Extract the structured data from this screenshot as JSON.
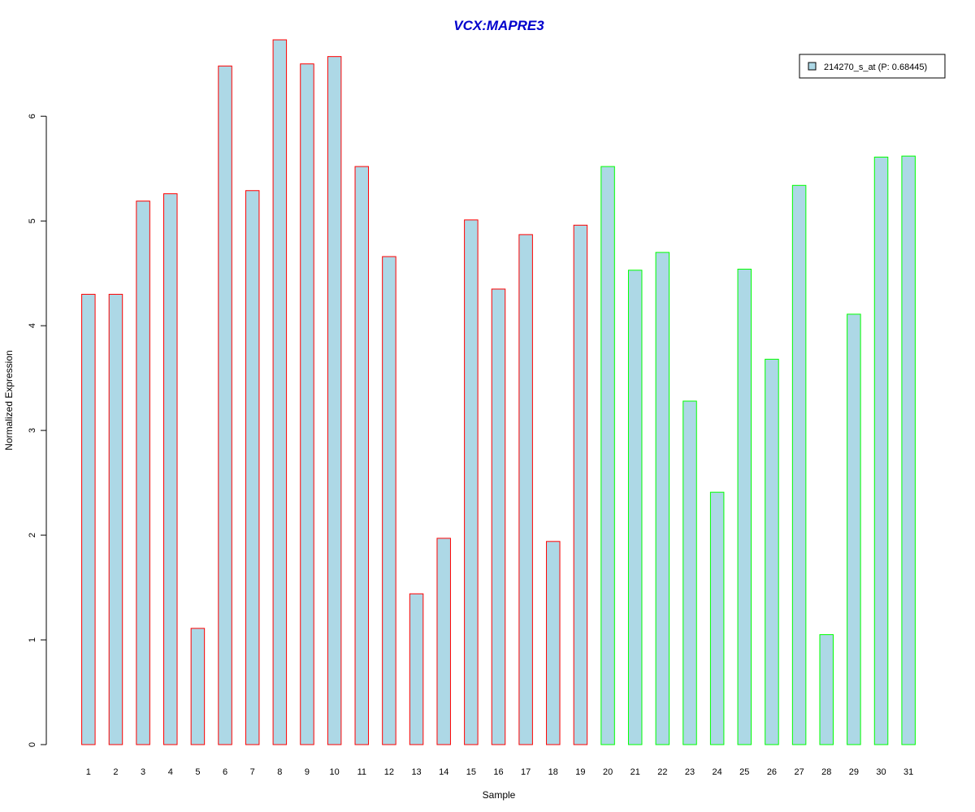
{
  "chart_data": {
    "type": "bar",
    "title": "VCX:MAPRE3",
    "xlabel": "Sample",
    "ylabel": "Normalized Expression",
    "ylim": [
      0,
      6.8
    ],
    "yticks": [
      0,
      1,
      2,
      3,
      4,
      5,
      6
    ],
    "categories": [
      "1",
      "2",
      "3",
      "4",
      "5",
      "6",
      "7",
      "8",
      "9",
      "10",
      "11",
      "12",
      "13",
      "14",
      "15",
      "16",
      "17",
      "18",
      "19",
      "20",
      "21",
      "22",
      "23",
      "24",
      "25",
      "26",
      "27",
      "28",
      "29",
      "30",
      "31"
    ],
    "series": [
      {
        "name": "214270_s_at (P: 0.68445)",
        "fill": "#add8e6",
        "values": [
          4.3,
          4.3,
          5.19,
          5.26,
          1.11,
          6.48,
          5.29,
          6.73,
          6.5,
          6.57,
          5.52,
          4.66,
          1.44,
          1.97,
          5.01,
          4.35,
          4.87,
          1.94,
          4.96,
          5.52,
          4.53,
          4.7,
          3.28,
          2.41,
          4.54,
          3.68,
          5.34,
          1.05,
          4.11,
          5.61,
          5.62
        ]
      }
    ],
    "bar_border_colors": [
      "#ff0000",
      "#ff0000",
      "#ff0000",
      "#ff0000",
      "#ff0000",
      "#ff0000",
      "#ff0000",
      "#ff0000",
      "#ff0000",
      "#ff0000",
      "#ff0000",
      "#ff0000",
      "#ff0000",
      "#ff0000",
      "#ff0000",
      "#ff0000",
      "#ff0000",
      "#ff0000",
      "#ff0000",
      "#00ff00",
      "#00ff00",
      "#00ff00",
      "#00ff00",
      "#00ff00",
      "#00ff00",
      "#00ff00",
      "#00ff00",
      "#00ff00",
      "#00ff00",
      "#00ff00",
      "#00ff00"
    ],
    "title_color": "#0000cc",
    "grid": false,
    "legend_position": "top-right"
  }
}
